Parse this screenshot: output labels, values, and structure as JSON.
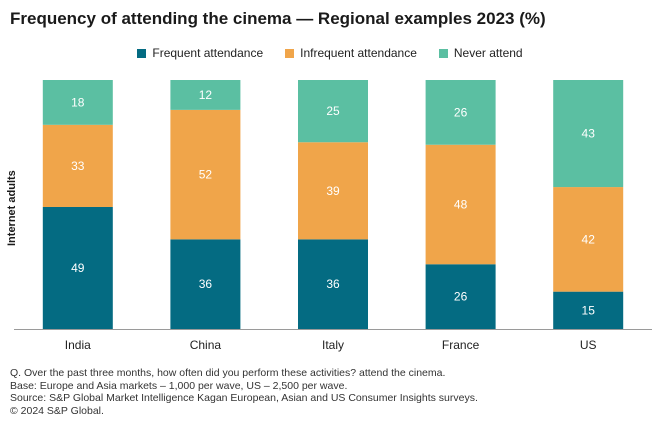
{
  "chart_data": {
    "type": "bar",
    "stacked": true,
    "title": "Frequency of attending the cinema — Regional examples 2023 (%)",
    "ylabel": "Internet adults",
    "xlabel": "",
    "ylim": [
      0,
      100
    ],
    "categories": [
      "India",
      "China",
      "Italy",
      "France",
      "US"
    ],
    "series": [
      {
        "name": "Frequent attendance",
        "color": "#046b82",
        "values": [
          49,
          36,
          36,
          26,
          15
        ]
      },
      {
        "name": "Infrequent attendance",
        "color": "#f0a54a",
        "values": [
          33,
          52,
          39,
          48,
          42
        ]
      },
      {
        "name": "Never attend",
        "color": "#5bbfa2",
        "values": [
          18,
          12,
          25,
          26,
          43
        ]
      }
    ],
    "legend_position": "top"
  },
  "footnotes": [
    "Q. Over the past three months, how often did you perform these activities? attend the cinema.",
    "Base: Europe and Asia markets – 1,000 per wave, US – 2,500 per wave.",
    "Source: S&P Global Market Intelligence Kagan European, Asian and US Consumer Insights surveys.",
    "© 2024 S&P Global."
  ]
}
